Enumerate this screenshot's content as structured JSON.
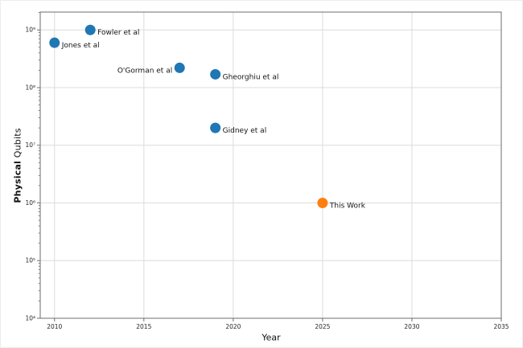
{
  "chart_data": {
    "type": "scatter",
    "title": "",
    "xlabel": "Year",
    "ylabel": "Physical Qubits",
    "ylabel_bold": "Physical",
    "ylabel_regular": "Qubits",
    "grid": true,
    "legend": "none",
    "xlim": [
      2009.2,
      2035
    ],
    "ylim_log": [
      4,
      9.31
    ],
    "x_ticks": [
      2010,
      2015,
      2020,
      2025,
      2030,
      2035
    ],
    "x_tick_labels": [
      "2010",
      "2015",
      "2020",
      "2025",
      "2030",
      "2035"
    ],
    "y_ticks": [
      1000000000.0,
      100000000.0,
      10000000.0,
      1000000.0,
      100000.0,
      10000.0
    ],
    "y_tick_labels": [
      "10⁹",
      "10⁸",
      "10⁷",
      "10⁶",
      "10⁵",
      "10⁴"
    ],
    "series": [
      {
        "name": "prior-work",
        "color": "#1f77b4",
        "points": [
          {
            "x": 2010,
            "y": 600000000.0,
            "label": "Jones et al",
            "label_side": "right"
          },
          {
            "x": 2012,
            "y": 1000000000.0,
            "label": "Fowler et al",
            "label_side": "right"
          },
          {
            "x": 2017,
            "y": 220000000.0,
            "label": "O'Gorman et al",
            "label_side": "left"
          },
          {
            "x": 2019,
            "y": 170000000.0,
            "label": "Gheorghiu et al",
            "label_side": "right"
          },
          {
            "x": 2019,
            "y": 20000000.0,
            "label": "Gidney et al",
            "label_side": "right"
          }
        ]
      },
      {
        "name": "this-work",
        "color": "#ff7f0e",
        "points": [
          {
            "x": 2025,
            "y": 1000000.0,
            "label": "This Work",
            "label_side": "right"
          }
        ]
      }
    ]
  },
  "colors": {
    "grid": "#dcdcdc",
    "spine": "#6e6e6e",
    "tick_label": "#262626",
    "point_label": "#141414",
    "background": "#ffffff"
  }
}
